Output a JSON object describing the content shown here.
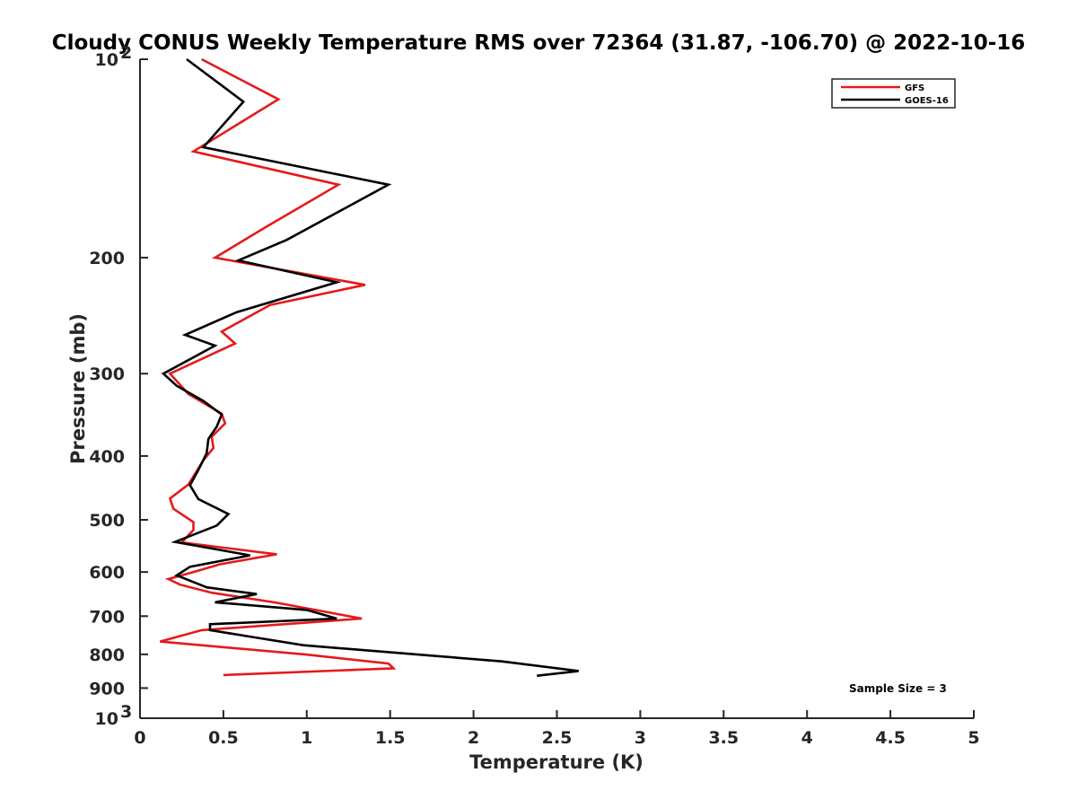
{
  "chart_data": {
    "type": "line",
    "title": "Cloudy CONUS Weekly Temperature RMS over 72364 (31.87, -106.70) @ 2022-10-16",
    "xlabel": "Temperature (K)",
    "ylabel": "Pressure (mb)",
    "xlim": [
      0,
      5
    ],
    "ylim": [
      100,
      1000
    ],
    "y_scale": "log",
    "y_reversed": true,
    "grid": false,
    "legend_position": "top-right",
    "x_ticks": [
      "0",
      "0.5",
      "1",
      "1.5",
      "2",
      "2.5",
      "3",
      "3.5",
      "4",
      "4.5",
      "5"
    ],
    "y_ticks": [
      {
        "value": 100,
        "base": "10",
        "exp": "2"
      },
      {
        "value": 200,
        "label": "200"
      },
      {
        "value": 300,
        "label": "300"
      },
      {
        "value": 400,
        "label": "400"
      },
      {
        "value": 500,
        "label": "500"
      },
      {
        "value": 600,
        "label": "600"
      },
      {
        "value": 700,
        "label": "700"
      },
      {
        "value": 800,
        "label": "800"
      },
      {
        "value": 900,
        "label": "900"
      },
      {
        "value": 1000,
        "base": "10",
        "exp": "3"
      }
    ],
    "annotation": "Sample Size = 3",
    "series": [
      {
        "name": "GFS",
        "color": "#e41a1c",
        "points": [
          [
            0.37,
            100
          ],
          [
            0.83,
            115
          ],
          [
            0.32,
            138
          ],
          [
            1.19,
            155
          ],
          [
            0.75,
            180
          ],
          [
            0.45,
            200
          ],
          [
            1.35,
            220
          ],
          [
            0.78,
            236
          ],
          [
            0.49,
            259
          ],
          [
            0.57,
            270
          ],
          [
            0.18,
            300
          ],
          [
            0.29,
            322
          ],
          [
            0.49,
            345
          ],
          [
            0.51,
            357
          ],
          [
            0.43,
            374
          ],
          [
            0.44,
            389
          ],
          [
            0.38,
            406
          ],
          [
            0.29,
            442
          ],
          [
            0.18,
            464
          ],
          [
            0.2,
            481
          ],
          [
            0.32,
            504
          ],
          [
            0.32,
            518
          ],
          [
            0.25,
            541
          ],
          [
            0.82,
            564
          ],
          [
            0.48,
            584
          ],
          [
            0.34,
            598
          ],
          [
            0.17,
            615
          ],
          [
            0.24,
            627
          ],
          [
            0.43,
            645
          ],
          [
            0.82,
            668
          ],
          [
            1.33,
            706
          ],
          [
            0.37,
            735
          ],
          [
            0.12,
            765
          ],
          [
            0.99,
            800
          ],
          [
            1.49,
            826
          ],
          [
            1.52,
            840
          ],
          [
            0.5,
            860
          ]
        ]
      },
      {
        "name": "GOES-16",
        "color": "#000000",
        "points": [
          [
            0.28,
            100
          ],
          [
            0.62,
            116
          ],
          [
            0.38,
            136
          ],
          [
            1.49,
            155
          ],
          [
            0.88,
            188
          ],
          [
            0.59,
            202
          ],
          [
            1.18,
            218
          ],
          [
            0.58,
            242
          ],
          [
            0.27,
            262
          ],
          [
            0.45,
            272
          ],
          [
            0.14,
            300
          ],
          [
            0.22,
            313
          ],
          [
            0.38,
            330
          ],
          [
            0.49,
            346
          ],
          [
            0.46,
            361
          ],
          [
            0.41,
            377
          ],
          [
            0.4,
            396
          ],
          [
            0.35,
            420
          ],
          [
            0.3,
            443
          ],
          [
            0.35,
            465
          ],
          [
            0.53,
            490
          ],
          [
            0.46,
            510
          ],
          [
            0.21,
            540
          ],
          [
            0.66,
            566
          ],
          [
            0.3,
            589
          ],
          [
            0.22,
            607
          ],
          [
            0.4,
            633
          ],
          [
            0.7,
            648
          ],
          [
            0.45,
            667
          ],
          [
            1.0,
            685
          ],
          [
            1.18,
            706
          ],
          [
            0.42,
            720
          ],
          [
            0.42,
            735
          ],
          [
            0.66,
            752
          ],
          [
            0.98,
            775
          ],
          [
            2.17,
            820
          ],
          [
            2.63,
            848
          ],
          [
            2.38,
            862
          ]
        ]
      }
    ]
  }
}
